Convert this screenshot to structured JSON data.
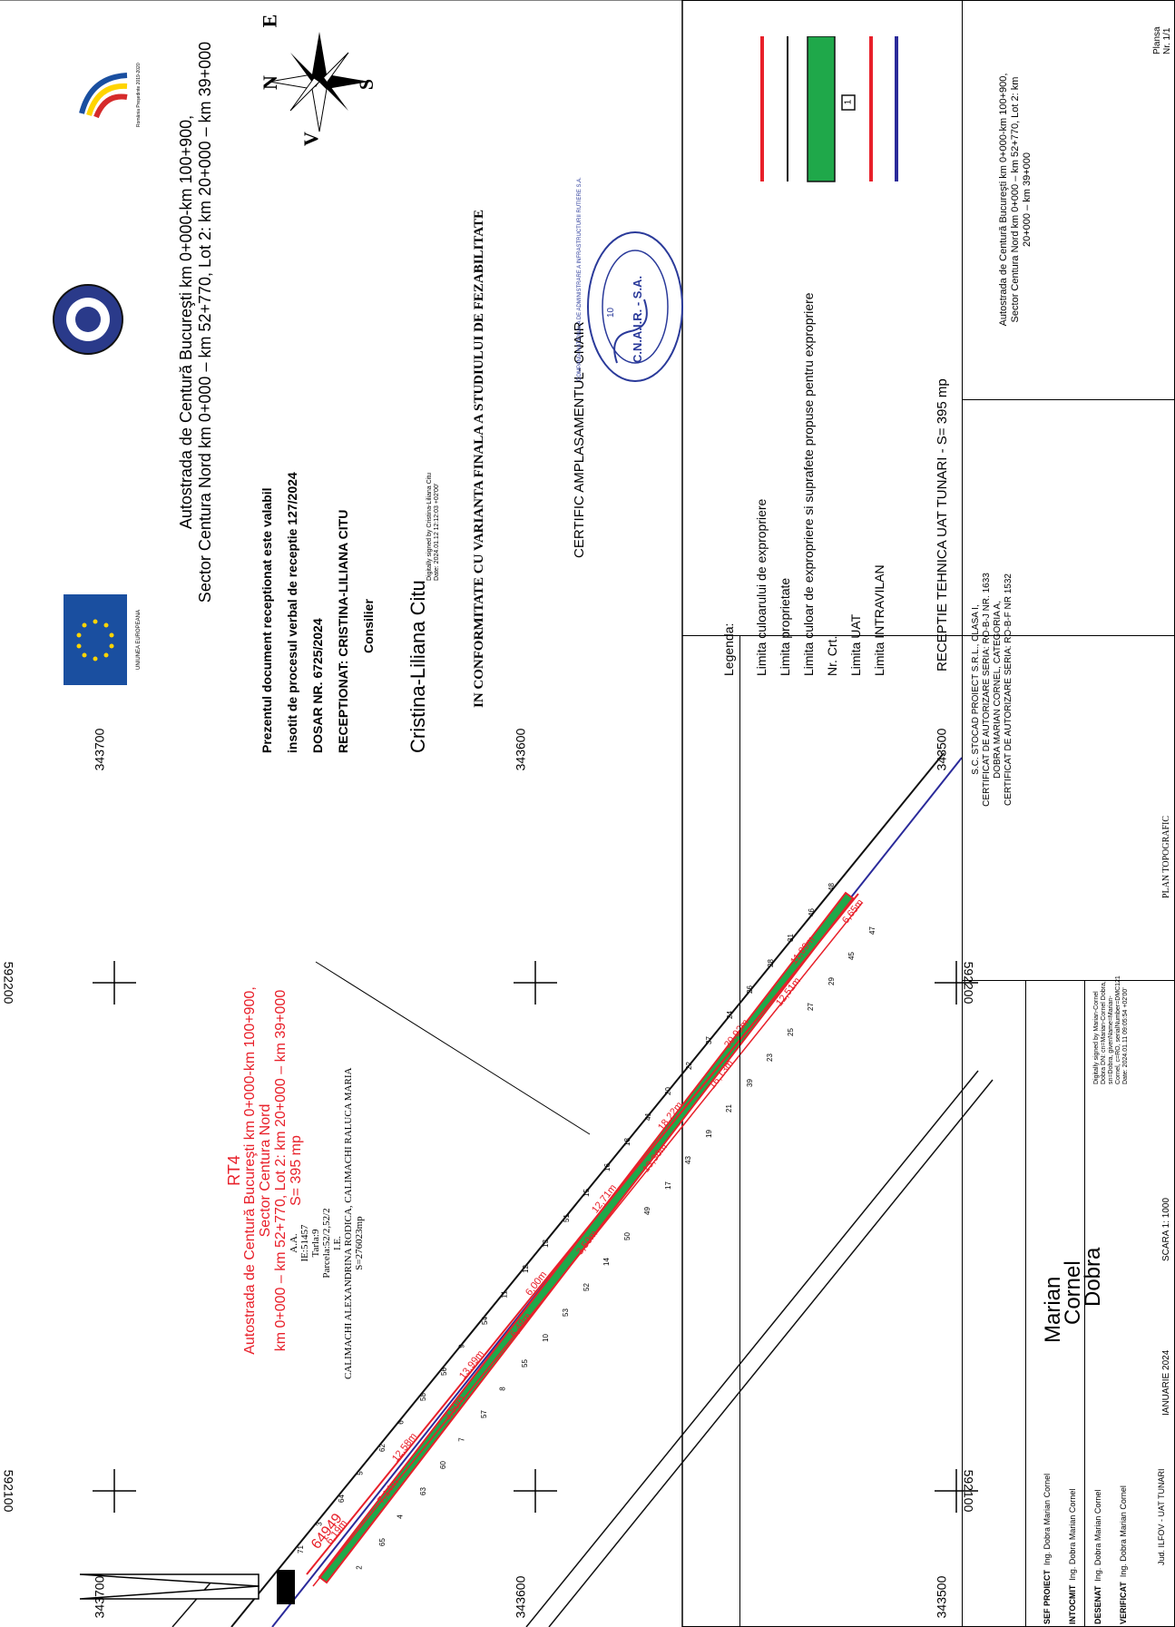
{
  "header": {
    "title_line1": "Autostrada de Centură Bucureşti km 0+000-km 100+900,",
    "title_line2": "Sector Centura Nord km 0+000 – km 52+770, Lot 2: km 20+000 – km 39+000",
    "eu_logo_text": "UNIUNEA EUROPEANA",
    "presidency_logo_text": "România Președinte 2019-2020"
  },
  "reception": {
    "line1": "Prezentul document receptionat este valabil",
    "line2": "insotit de procesul verbal de receptie 127/2024",
    "dosar": "DOSAR NR. 6725/2024",
    "receptionat": "RECEPTIONAT: CRISTINA-LILIANA CITU",
    "role": "Consilier",
    "signature": "Cristina-Liliana Citu",
    "signature_note1": "Digitally signed by Cristina-Liliana Citu",
    "signature_note2": "Date: 2024.01.12 12:12:03 +02'00'"
  },
  "conformity": "IN CONFORMITATE CU VARIANTA FINALA A STUDIULUI DE FEZABILITATE",
  "certific": "CERTIFIC AMPLASAMENTUL- CNAIR",
  "stamp": {
    "ring": "COMPANIA NATIONALA DE ADMINISTRARE A INFRASTRUCTURII RUTIERE S.A.",
    "center": "C.N.A.I.R. - S.A.",
    "number": "10"
  },
  "legend": {
    "title": "Legenda:",
    "items": [
      {
        "label": "Limita culoarului de expropriere",
        "color": "#e8202a",
        "kind": "line"
      },
      {
        "label": "Limita proprietate",
        "color": "#111111",
        "kind": "line"
      },
      {
        "label": "Limita culoar de expropriere si suprafete propuse pentru expropriere",
        "color": "#1fa84a",
        "kind": "fill"
      },
      {
        "label": "Nr. Crt.",
        "color": "#111111",
        "kind": "box",
        "box_text": "1"
      },
      {
        "label": "Limita UAT",
        "color": "#e8202a",
        "kind": "line"
      },
      {
        "label": "Limita INTRAVILAN",
        "color": "#2a2a9a",
        "kind": "line"
      }
    ]
  },
  "reception_tehnica": "RECEPTIE TEHNICA UAT TUNARI - S= 395 mp",
  "title_block": {
    "company": "S.C. STOCAD PROIECT S.R.L., CLASA I,",
    "cert1": "CERTIFICAT DE AUTORIZARE SERIA: RO-B-J NR. 1633",
    "person": "DOBRA MARIAN CORNEL, CATEGORIA A,",
    "cert2": "CERTIFICAT DE AUTORIZARE SERIA: RO-B-F NR 1532",
    "project_line1": "Autostrada de Centură Bucureşti km 0+000-km 100+900,",
    "project_line2": "Sector Centura Nord km 0+000 – km 52+770, Lot 2: km",
    "project_line3": "20+000 – km 39+000",
    "plansa_label": "Plansa",
    "plansa_value": "Nr. 1/1",
    "roles": [
      {
        "role": "SEF PROIECT",
        "name": "Ing. Dobra Marian Cornel"
      },
      {
        "role": "INTOCMIT",
        "name": "Ing. Dobra Marian Cornel"
      },
      {
        "role": "DESENAT",
        "name": "Ing. Dobra Marian Cornel"
      },
      {
        "role": "VERIFICAT",
        "name": "Ing. Dobra Marian Cornel"
      }
    ],
    "jud": "Jud. ILFOV - UAT TUNARI",
    "scara": "SCARA 1: 1000",
    "plan": "PLAN TOPOGRAFIC",
    "data": "IANUARIE 2024",
    "signer_big1": "Marian",
    "signer_big2": "Cornel",
    "signer_big3": "Dobra",
    "digital_sig": "Digitally signed by Marian-Cornel Dobra DN: cn=Marian-Cornel Dobra, sn=Dobra, givenName=Marian-Cornel, c=RO, serialNumber=DMC121 Date: 2024.01.11 09:05:54 +02'00'"
  },
  "map": {
    "coords_top": [
      "343700",
      "343600",
      "343500"
    ],
    "coords_bottom": [
      "343700",
      "343600",
      "343500"
    ],
    "coords_left": [
      "592200",
      "592100"
    ],
    "coords_right": [
      "592200",
      "592100"
    ],
    "rt_label": "RT4",
    "rt_line1": "Autostrada de Centură Bucureşti km 0+000-km 100+900,",
    "rt_line2": "Sector Centura Nord",
    "rt_line3": "km 0+000 – km 52+770, Lot 2: km 20+000 – km 39+000",
    "rt_area": "S= 395 mp",
    "parcel_aa": "A.A.",
    "parcel_ie": "IE:51457",
    "parcel_tarla": "Tarla:9",
    "parcel_parcela": "Parcela:52/2,52/2",
    "parcel_le": "I.E.",
    "parcel_owner": "CALIMACHI ALEXANDRINA RODICA, CALIMACHI RALUCA MARIA",
    "parcel_s": "S=276023mp",
    "id_label": "64949",
    "north_label": "N",
    "segment_labels": [
      "6,19m",
      "7,14m",
      "12,58m",
      "3,50m",
      "13,99m",
      "6,48m",
      "6,00m",
      "3,50m",
      "12,71m",
      "13,36m",
      "18,22m",
      "16,13m",
      "20,92m",
      "12,51m",
      "11,09m",
      "6,65m"
    ],
    "point_numbers": [
      "71",
      "2",
      "3",
      "65",
      "64",
      "4",
      "5",
      "63",
      "62",
      "60",
      "6",
      "7",
      "58",
      "57",
      "56",
      "8",
      "9",
      "55",
      "54",
      "10",
      "11",
      "53",
      "12",
      "52",
      "13",
      "14",
      "51",
      "50",
      "15",
      "49",
      "16",
      "17",
      "18",
      "43",
      "41",
      "19",
      "20",
      "21",
      "22",
      "39",
      "37",
      "23",
      "24",
      "25",
      "26",
      "27",
      "28",
      "29",
      "31",
      "45",
      "46",
      "47",
      "48"
    ]
  },
  "compass": {
    "n": "N",
    "e": "E",
    "s": "S",
    "v": "V"
  }
}
